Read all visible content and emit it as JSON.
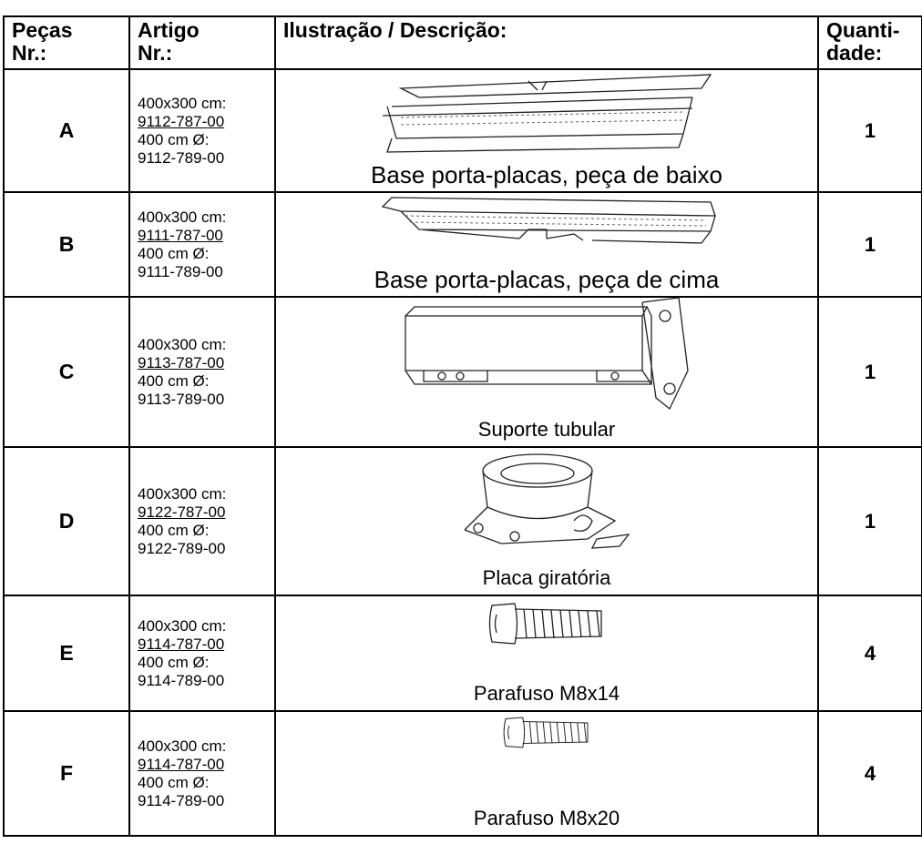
{
  "table": {
    "headers": [
      [
        "Peças",
        "Nr.:"
      ],
      [
        "Artigo",
        "Nr.:"
      ],
      [
        "Ilustração / Descrição:"
      ],
      [
        "Quanti-",
        "dade:"
      ]
    ],
    "rows": [
      {
        "part": "A",
        "article": [
          "400x300 cm:",
          "9112-787-00",
          "400 cm Ø:",
          "9112-789-00"
        ],
        "description": "Base porta-placas, peça de baixo",
        "quantity": "1"
      },
      {
        "part": "B",
        "article": [
          "400x300 cm:",
          "9111-787-00",
          "400 cm Ø:",
          "9111-789-00"
        ],
        "description": "Base porta-placas, peça de cima",
        "quantity": "1"
      },
      {
        "part": "C",
        "article": [
          "400x300 cm:",
          "9113-787-00",
          "400 cm Ø:",
          "9113-789-00"
        ],
        "description": "Suporte tubular",
        "quantity": "1"
      },
      {
        "part": "D",
        "article": [
          "400x300 cm:",
          "9122-787-00",
          "400 cm Ø:",
          "9122-789-00"
        ],
        "description": "Placa giratória",
        "quantity": "1"
      },
      {
        "part": "E",
        "article": [
          "400x300 cm:",
          "9114-787-00",
          "400 cm Ø:",
          "9114-789-00"
        ],
        "description": "Parafuso M8x14",
        "quantity": "4"
      },
      {
        "part": "F",
        "article": [
          "400x300 cm:",
          "9114-787-00",
          "400 cm Ø:",
          "9114-789-00"
        ],
        "description": "Parafuso M8x20",
        "quantity": "4"
      }
    ]
  }
}
